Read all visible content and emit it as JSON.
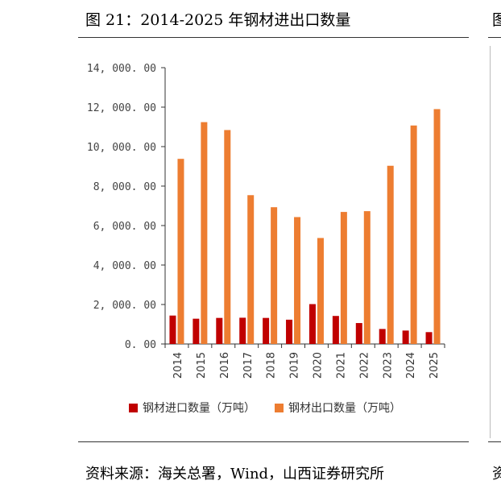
{
  "figure": {
    "title": "图 21：2014-2025 年钢材进出口数量",
    "source": "资料来源：海关总署，Wind，山西证券研究所",
    "edge_title_glyph": "图",
    "edge_source_glyph": "资"
  },
  "chart_data": {
    "type": "bar",
    "categories": [
      "2014",
      "2015",
      "2016",
      "2017",
      "2018",
      "2019",
      "2020",
      "2021",
      "2022",
      "2023",
      "2024",
      "2025"
    ],
    "series": [
      {
        "name": "钢材进口数量（万吨）",
        "color": "#c00000",
        "values": [
          1440,
          1280,
          1320,
          1330,
          1320,
          1230,
          2020,
          1420,
          1060,
          760,
          680,
          600
        ]
      },
      {
        "name": "钢材出口数量（万吨）",
        "color": "#ed7d31",
        "values": [
          9380,
          11240,
          10840,
          7540,
          6930,
          6430,
          5370,
          6690,
          6730,
          9030,
          11070,
          11900
        ]
      }
    ],
    "ylim": [
      0,
      14000
    ],
    "yticks": [
      "14, 000. 00",
      "12, 000. 00",
      "10, 000. 00",
      "8, 000. 00",
      "6, 000. 00",
      "4, 000. 00",
      "2, 000. 00",
      "0. 00"
    ],
    "ytick_values": [
      14000,
      12000,
      10000,
      8000,
      6000,
      4000,
      2000,
      0
    ],
    "grid": false,
    "legend_position": "bottom"
  }
}
